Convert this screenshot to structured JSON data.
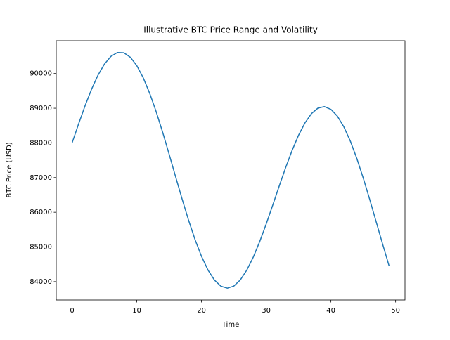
{
  "chart_data": {
    "type": "line",
    "title": "Illustrative BTC Price Range and Volatility",
    "xlabel": "Time",
    "ylabel": "BTC Price (USD)",
    "x": [
      0,
      1,
      2,
      3,
      4,
      5,
      6,
      7,
      8,
      9,
      10,
      11,
      12,
      13,
      14,
      15,
      16,
      17,
      18,
      19,
      20,
      21,
      22,
      23,
      24,
      25,
      26,
      27,
      28,
      29,
      30,
      31,
      32,
      33,
      34,
      35,
      36,
      37,
      38,
      39,
      40,
      41,
      42,
      43,
      44,
      45,
      46,
      47,
      48,
      49
    ],
    "series": [
      {
        "name": "BTC Price",
        "color": "#1f77b4",
        "values": [
          88000,
          88546,
          89068,
          89544,
          89952,
          90274,
          90496,
          90606,
          90599,
          90471,
          90228,
          89876,
          89426,
          88897,
          88305,
          87673,
          87025,
          86384,
          85772,
          85214,
          84730,
          84335,
          84045,
          83869,
          83811,
          83873,
          84049,
          84332,
          84706,
          85156,
          85662,
          86201,
          86750,
          87285,
          87782,
          88221,
          88581,
          88846,
          89004,
          89046,
          88968,
          88772,
          88464,
          88053,
          87555,
          86986,
          86369,
          85724,
          85077,
          84450
        ]
      }
    ],
    "xlim": [
      -2.45,
      51.45
    ],
    "ylim": [
      83471,
      90946
    ],
    "xticks": [
      0,
      10,
      20,
      30,
      40,
      50
    ],
    "yticks": [
      84000,
      85000,
      86000,
      87000,
      88000,
      89000,
      90000
    ],
    "grid": false
  }
}
